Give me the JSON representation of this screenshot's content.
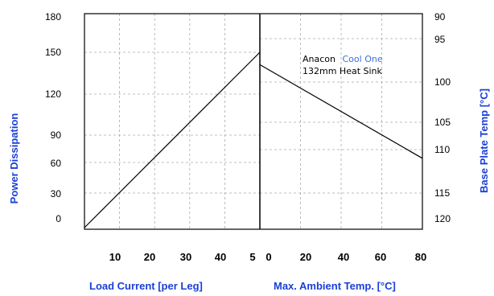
{
  "colors": {
    "label_blue": "#1a3fd6",
    "brand_blue": "#3a6fe0",
    "line": "#000000",
    "grid": "#aaaaaa"
  },
  "chart_data": {
    "type": "line",
    "annotation": {
      "line1_prefix": "Anacon",
      "brand": "Cool One",
      "line2": "132mm Heat Sink"
    },
    "left_panel": {
      "xlabel": "Load Current [per Leg]",
      "x_ticks": [
        "10",
        "20",
        "30",
        "40",
        "5"
      ],
      "xlim": [
        0,
        50
      ],
      "ylabel": "Power Dissipation",
      "y_ticks": [
        {
          "label": "0",
          "value": 0
        },
        {
          "label": "30",
          "value": 30
        },
        {
          "label": "60",
          "value": 60
        },
        {
          "label": "90",
          "value": 90
        },
        {
          "label": "120",
          "value": 120
        },
        {
          "label": "150",
          "value": 150
        },
        {
          "label": "180",
          "value": 180
        }
      ],
      "series": [
        {
          "points": [
            [
              0,
              0
            ],
            [
              50,
              150
            ]
          ]
        }
      ]
    },
    "right_panel": {
      "xlabel": "Max. Ambient Temp. [°C]",
      "x_ticks": [
        "0",
        "20",
        "40",
        "60",
        "80"
      ],
      "xlim": [
        0,
        80
      ],
      "ylabel": "Base Plate Temp [°C]",
      "y_ticks": [
        {
          "label": "90",
          "value": 90
        },
        {
          "label": "95",
          "value": 95
        },
        {
          "label": "100",
          "value": 100
        },
        {
          "label": "105",
          "value": 105
        },
        {
          "label": "110",
          "value": 110
        },
        {
          "label": "115",
          "value": 115
        },
        {
          "label": "120",
          "value": 120
        }
      ],
      "series": [
        {
          "points": [
            [
              0,
              98
            ],
            [
              80,
              111
            ]
          ]
        }
      ]
    },
    "grid": true
  }
}
